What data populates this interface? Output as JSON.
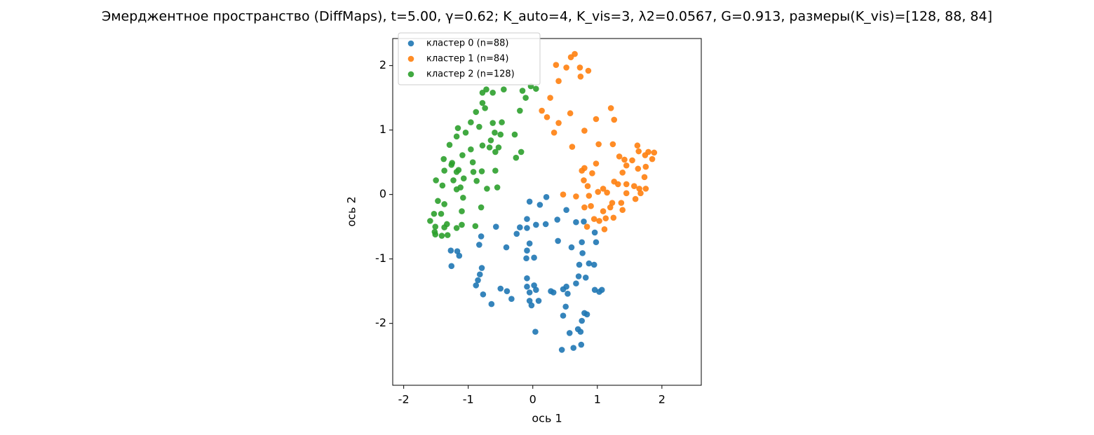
{
  "chart_data": {
    "type": "scatter",
    "title": "Эмерджентное пространство (DiffMaps), t=5.00, γ=0.62; K_auto=4, K_vis=3, λ2=0.0567, G=0.913, размеры(K_vis)=[128, 88, 84]",
    "x_label": "ось 1",
    "y_label": "ось 2",
    "xlim": [
      -2.17,
      2.61
    ],
    "ylim": [
      -2.96,
      2.42
    ],
    "xticks": [
      -2,
      -1,
      0,
      1,
      2
    ],
    "yticks": [
      -2,
      -1,
      0,
      1,
      2
    ],
    "legend": "upper left",
    "series": [
      {
        "name": "кластер 0 (n=88)",
        "color": "#1f77b4",
        "x": [
          -0.05,
          0.21,
          0.11,
          0.52,
          0.38,
          -0.09,
          0.05,
          0.2,
          -0.2,
          -0.57,
          -0.25,
          -0.8,
          -0.83,
          -0.41,
          -0.05,
          0.39,
          0.67,
          0.79,
          0.96,
          0.98,
          0.76,
          0.6,
          0.77,
          -0.09,
          0.02,
          -0.1,
          -1.27,
          -1.17,
          -1.14,
          -1.26,
          -0.79,
          -0.82,
          -0.85,
          -0.88,
          -0.5,
          -0.4,
          -0.33,
          -0.77,
          -0.64,
          -0.09,
          -0.09,
          0.02,
          0.05,
          -0.05,
          -0.05,
          -0.02,
          0.09,
          0.28,
          0.32,
          0.47,
          0.52,
          0.54,
          0.71,
          0.82,
          0.67,
          0.72,
          0.87,
          0.95,
          0.96,
          1.03,
          1.07,
          0.51,
          0.8,
          0.84,
          0.76,
          0.47,
          0.7,
          0.57,
          0.74,
          0.04,
          0.75,
          0.63,
          0.45,
          -0.09
        ],
        "values": [
          -0.11,
          -0.04,
          -0.16,
          -0.24,
          -0.39,
          -0.38,
          -0.47,
          -0.46,
          -0.51,
          -0.5,
          -0.61,
          -0.65,
          -0.78,
          -0.82,
          -0.76,
          -0.72,
          -0.43,
          -0.42,
          -0.59,
          -0.74,
          -0.74,
          -0.82,
          -0.91,
          -0.87,
          -0.98,
          -0.99,
          -0.87,
          -0.88,
          -0.95,
          -1.11,
          -1.14,
          -1.24,
          -1.33,
          -1.41,
          -1.46,
          -1.5,
          -1.62,
          -1.55,
          -1.7,
          -1.3,
          -1.43,
          -1.41,
          -1.48,
          -1.52,
          -1.65,
          -1.72,
          -1.65,
          -1.5,
          -1.52,
          -1.47,
          -1.43,
          -1.54,
          -1.27,
          -1.29,
          -1.38,
          -1.09,
          -1.07,
          -1.09,
          -1.48,
          -1.51,
          -1.48,
          -1.74,
          -1.84,
          -1.86,
          -1.96,
          -1.88,
          -2.09,
          -2.15,
          -2.13,
          -2.13,
          -2.33,
          -2.38,
          -2.41,
          -0.52
        ]
      },
      {
        "name": "кластер 1 (n=84)",
        "color": "#ff7f0e",
        "x": [
          0.65,
          0.59,
          0.36,
          0.52,
          0.73,
          0.86,
          0.4,
          0.74,
          0.27,
          0.14,
          0.22,
          0.58,
          0.98,
          1.21,
          1.26,
          0.4,
          0.33,
          0.8,
          0.61,
          1.02,
          1.24,
          1.34,
          1.42,
          1.45,
          1.39,
          1.62,
          1.64,
          1.74,
          1.79,
          1.88,
          1.85,
          1.75,
          1.63,
          1.54,
          1.73,
          1.45,
          1.57,
          1.65,
          1.75,
          1.67,
          1.59,
          1.45,
          1.37,
          1.26,
          1.32,
          1.09,
          1.01,
          1.15,
          0.85,
          0.92,
          0.98,
          0.8,
          0.76,
          0.79,
          0.87,
          0.67,
          0.47,
          0.9,
          0.8,
          0.95,
          1.09,
          1.2,
          1.23,
          1.25,
          1.39,
          1.11,
          1.13,
          1.03,
          0.84
        ],
        "values": [
          2.18,
          2.13,
          2.01,
          1.97,
          1.97,
          1.92,
          1.76,
          1.83,
          1.5,
          1.3,
          1.2,
          1.26,
          1.17,
          1.34,
          1.16,
          1.11,
          0.96,
          0.99,
          0.74,
          0.78,
          0.78,
          0.59,
          0.54,
          0.45,
          0.34,
          0.76,
          0.67,
          0.61,
          0.66,
          0.65,
          0.55,
          0.43,
          0.4,
          0.53,
          0.27,
          0.16,
          0.13,
          0.09,
          0.09,
          0.02,
          -0.07,
          0.02,
          -0.13,
          0.2,
          0.16,
          0.09,
          0.04,
          0.03,
          0.13,
          0.33,
          0.48,
          0.41,
          0.37,
          0.22,
          -0.02,
          -0.03,
          0,
          -0.18,
          -0.2,
          -0.38,
          -0.26,
          -0.2,
          -0.13,
          -0.36,
          -0.24,
          -0.54,
          -0.37,
          -0.41,
          -0.5
        ]
      },
      {
        "name": "кластер 2 (n=128)",
        "color": "#2ca02c",
        "x": [
          -0.72,
          -0.62,
          -0.45,
          -0.16,
          -0.03,
          0.05,
          -0.11,
          -0.78,
          -0.74,
          -0.88,
          -0.2,
          -0.96,
          -0.83,
          -0.62,
          -0.48,
          -0.28,
          -1.16,
          -1.04,
          -1.18,
          -0.59,
          -0.5,
          -0.65,
          -0.78,
          -0.67,
          -0.53,
          -0.58,
          -0.18,
          -0.26,
          -1.29,
          -0.96,
          -1.09,
          -0.93,
          -1.38,
          -1.25,
          -1.15,
          -0.92,
          -0.79,
          -0.58,
          -1.37,
          -1.5,
          -1.4,
          -1.23,
          -1.07,
          -0.87,
          -1.18,
          -1.12,
          -0.71,
          -0.55,
          -1.47,
          -1.37,
          -1.08,
          -0.8,
          -1.53,
          -1.42,
          -1.1,
          -1.1,
          -1.59,
          -1.51,
          -1.37,
          -1.33,
          -1.18,
          -0.89,
          -1.52,
          -1.41,
          -1.51,
          -1.32,
          -1.26,
          -1.18,
          -0.78
        ],
        "values": [
          1.63,
          1.58,
          1.63,
          1.61,
          1.68,
          1.64,
          1.5,
          1.42,
          1.34,
          1.28,
          1.3,
          1.12,
          1.05,
          1.11,
          1.12,
          0.93,
          1.03,
          0.96,
          0.9,
          0.96,
          0.93,
          0.84,
          0.76,
          0.73,
          0.73,
          0.66,
          0.66,
          0.57,
          0.77,
          0.7,
          0.61,
          0.5,
          0.55,
          0.49,
          0.38,
          0.35,
          0.36,
          0.37,
          0.37,
          0.22,
          0.14,
          0.22,
          0.25,
          0.21,
          0.08,
          0.11,
          0.09,
          0.11,
          -0.1,
          -0.15,
          -0.05,
          -0.2,
          -0.3,
          -0.3,
          -0.26,
          -0.47,
          -0.41,
          -0.5,
          -0.51,
          -0.46,
          -0.52,
          -0.49,
          -0.58,
          -0.64,
          -0.62,
          -0.63,
          0.46,
          0.35,
          1.58
        ]
      }
    ]
  }
}
